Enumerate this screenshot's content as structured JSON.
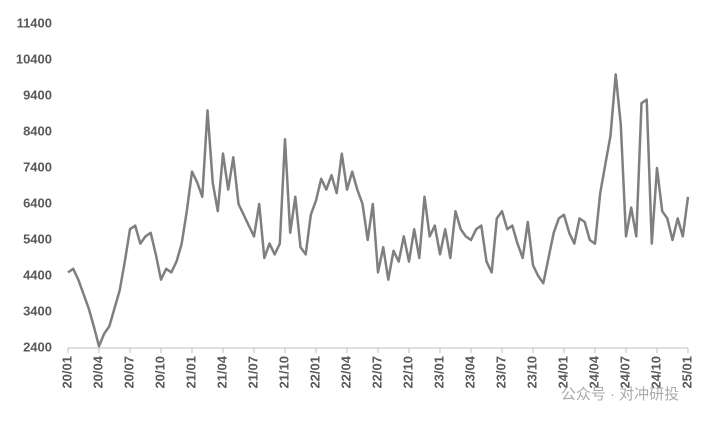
{
  "chart_data": {
    "type": "line",
    "watermark": "公众号 · 对冲研投",
    "categories": [
      "20/01",
      null,
      null,
      null,
      null,
      null,
      "20/04",
      null,
      null,
      null,
      null,
      null,
      "20/07",
      null,
      null,
      null,
      null,
      null,
      "20/10",
      null,
      null,
      null,
      null,
      null,
      "21/01",
      null,
      null,
      null,
      null,
      null,
      "21/04",
      null,
      null,
      null,
      null,
      null,
      "21/07",
      null,
      null,
      null,
      null,
      null,
      "21/10",
      null,
      null,
      null,
      null,
      null,
      "22/01",
      null,
      null,
      null,
      null,
      null,
      "22/04",
      null,
      null,
      null,
      null,
      null,
      "22/07",
      null,
      null,
      null,
      null,
      null,
      "22/10",
      null,
      null,
      null,
      null,
      null,
      "23/01",
      null,
      null,
      null,
      null,
      null,
      "23/04",
      null,
      null,
      null,
      null,
      null,
      "23/07",
      null,
      null,
      null,
      null,
      null,
      "23/10",
      null,
      null,
      null,
      null,
      null,
      "24/01",
      null,
      null,
      null,
      null,
      null,
      "24/04",
      null,
      null,
      null,
      null,
      null,
      "24/07",
      null,
      null,
      null,
      null,
      null,
      "24/10",
      null,
      null,
      null,
      null,
      null,
      "25/01"
    ],
    "values": [
      4500,
      4600,
      4300,
      3900,
      3500,
      3000,
      2450,
      2800,
      3000,
      3500,
      4000,
      4800,
      5700,
      5800,
      5300,
      5500,
      5600,
      5000,
      4300,
      4600,
      4500,
      4800,
      5300,
      6200,
      7300,
      7000,
      6600,
      9000,
      7000,
      6200,
      7800,
      6800,
      7700,
      6400,
      6100,
      5800,
      5500,
      6400,
      4900,
      5300,
      5000,
      5300,
      8200,
      5600,
      6600,
      5200,
      5000,
      6100,
      6500,
      7100,
      6800,
      7200,
      6700,
      7800,
      6800,
      7300,
      6800,
      6400,
      5400,
      6400,
      4500,
      5200,
      4300,
      5100,
      4800,
      5500,
      4800,
      5700,
      4900,
      6600,
      5500,
      5800,
      5000,
      5700,
      4900,
      6200,
      5700,
      5500,
      5400,
      5700,
      5800,
      4800,
      4500,
      6000,
      6200,
      5700,
      5800,
      5300,
      4900,
      5900,
      4700,
      4400,
      4200,
      4900,
      5600,
      6000,
      6100,
      5600,
      5300,
      6000,
      5900,
      5400,
      5300,
      6700,
      7500,
      8300,
      10000,
      8600,
      5500,
      6300,
      5500,
      9200,
      9300,
      5300,
      7400,
      6200,
      6000,
      5400,
      6000,
      5500,
      6600
    ],
    "color": "#7f7f7f",
    "ylim": [
      2400,
      11400
    ],
    "yticks": [
      2400,
      3400,
      4400,
      5400,
      6400,
      7400,
      8400,
      9400,
      10400,
      11400
    ]
  }
}
